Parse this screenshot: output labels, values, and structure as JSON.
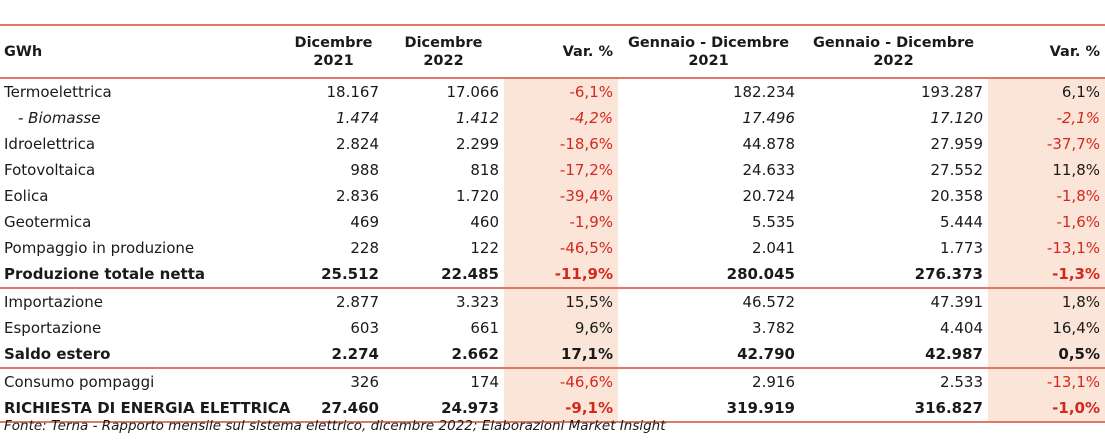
{
  "header": {
    "unit": "GWh",
    "col1": [
      "Dicembre",
      "2021"
    ],
    "col2": [
      "Dicembre",
      "2022"
    ],
    "col3": "Var. %",
    "col4": [
      "Gennaio - Dicembre",
      "2021"
    ],
    "col5": [
      "Gennaio - Dicembre",
      "2022"
    ],
    "col6": "Var. %"
  },
  "rows": [
    {
      "label": "Termoelettrica",
      "v": [
        "18.167",
        "17.066",
        "-6,1%",
        "182.234",
        "193.287",
        "6,1%"
      ]
    },
    {
      "label": "- Biomasse",
      "v": [
        "1.474",
        "1.412",
        "-4,2%",
        "17.496",
        "17.120",
        "-2,1%"
      ]
    },
    {
      "label": "Idroelettrica",
      "v": [
        "2.824",
        "2.299",
        "-18,6%",
        "44.878",
        "27.959",
        "-37,7%"
      ]
    },
    {
      "label": "Fotovoltaica",
      "v": [
        "988",
        "818",
        "-17,2%",
        "24.633",
        "27.552",
        "11,8%"
      ]
    },
    {
      "label": "Eolica",
      "v": [
        "2.836",
        "1.720",
        "-39,4%",
        "20.724",
        "20.358",
        "-1,8%"
      ]
    },
    {
      "label": "Geotermica",
      "v": [
        "469",
        "460",
        "-1,9%",
        "5.535",
        "5.444",
        "-1,6%"
      ]
    },
    {
      "label": "Pompaggio in produzione",
      "v": [
        "228",
        "122",
        "-46,5%",
        "2.041",
        "1.773",
        "-13,1%"
      ]
    },
    {
      "label": "Produzione totale netta",
      "v": [
        "25.512",
        "22.485",
        "-11,9%",
        "280.045",
        "276.373",
        "-1,3%"
      ]
    },
    {
      "label": "Importazione",
      "v": [
        "2.877",
        "3.323",
        "15,5%",
        "46.572",
        "47.391",
        "1,8%"
      ]
    },
    {
      "label": "Esportazione",
      "v": [
        "603",
        "661",
        "9,6%",
        "3.782",
        "4.404",
        "16,4%"
      ]
    },
    {
      "label": "Saldo estero",
      "v": [
        "2.274",
        "2.662",
        "17,1%",
        "42.790",
        "42.987",
        "0,5%"
      ]
    },
    {
      "label": "Consumo pompaggi",
      "v": [
        "326",
        "174",
        "-46,6%",
        "2.916",
        "2.533",
        "-13,1%"
      ]
    },
    {
      "label": "RICHIESTA DI ENERGIA ELETTRICA",
      "v": [
        "27.460",
        "24.973",
        "-9,1%",
        "319.919",
        "316.827",
        "-1,0%"
      ]
    }
  ],
  "footnote": "Fonte: Terna - Rapporto mensile sul sistema elettrico, dicembre 2022; Elaborazioni Market Insight",
  "colors": {
    "accent_border": "#e07866",
    "var_background": "#fbe5d9",
    "var_text": "#d4281e"
  }
}
